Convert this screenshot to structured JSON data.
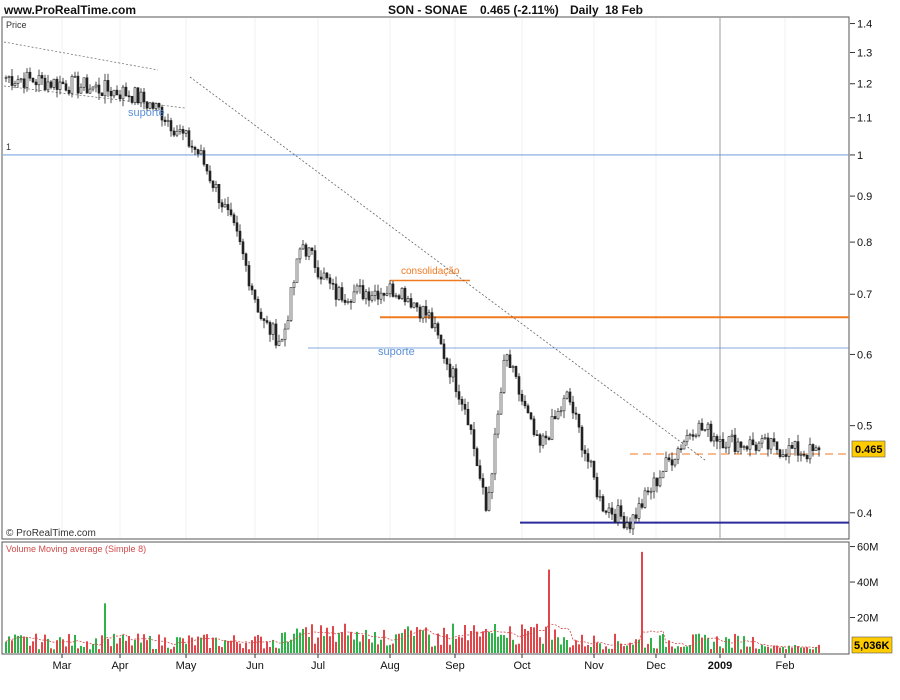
{
  "header": {
    "site": "www.ProRealTime.com",
    "ticker": "SON - SONAE",
    "quote": "0.465 (-2.11%)",
    "period": "Daily",
    "date": "18 Feb"
  },
  "colors": {
    "candle": "#222222",
    "support": "#5b8fd6",
    "consolidation": "#f07a20",
    "bottom_support": "#2b2a9c",
    "trend": "#666666",
    "vol_up": "#2fb24a",
    "vol_down": "#e0474b",
    "vol_ma": "#d24a4a"
  },
  "chart_data": [
    {
      "type": "candlestick",
      "panel_label": "Price",
      "y_scale": "log",
      "ylim": [
        0.375,
        1.42
      ],
      "yticks": [
        "0.4",
        "0.5",
        "0.6",
        "0.7",
        "0.8",
        "0.9",
        "1",
        "1.1",
        "1.2",
        "1.3",
        "1.4"
      ],
      "xticks": [
        "Mar",
        "Apr",
        "May",
        "Jun",
        "Jul",
        "Aug",
        "Sep",
        "Oct",
        "Nov",
        "Dec",
        "2009",
        "Feb"
      ],
      "last_price_label": "0.465",
      "level_1_label": "1",
      "annotations": {
        "suporte_upper": "suporte",
        "suporte_mid": "suporte",
        "consolidacao": "consolidação"
      },
      "levels": [
        {
          "name": "level_1",
          "value": 1.0
        },
        {
          "name": "resistance_orange",
          "value": 0.66
        },
        {
          "name": "support_mid",
          "value": 0.61
        },
        {
          "name": "consolidation_top",
          "value": 0.725
        },
        {
          "name": "bottom_support",
          "value": 0.39
        },
        {
          "name": "last_close_dashed",
          "value": 0.465
        }
      ],
      "close_path": [
        [
          "Mar",
          1.22
        ],
        [
          "Apr",
          1.2
        ],
        [
          "May",
          1.17
        ],
        [
          "May",
          1.12
        ],
        [
          "Jun",
          1.0
        ],
        [
          "Jun",
          0.9
        ],
        [
          "Jun",
          0.8
        ],
        [
          "Jul",
          0.65
        ],
        [
          "Jul",
          0.62
        ],
        [
          "Jul",
          0.8
        ],
        [
          "Aug",
          0.7
        ],
        [
          "Sep",
          0.71
        ],
        [
          "Sep",
          0.66
        ],
        [
          "Oct",
          0.52
        ],
        [
          "Oct",
          0.4
        ],
        [
          "Oct",
          0.6
        ],
        [
          "Nov",
          0.47
        ],
        [
          "Nov",
          0.54
        ],
        [
          "Dec",
          0.41
        ],
        [
          "Dec",
          0.39
        ],
        [
          "2009",
          0.45
        ],
        [
          "2009",
          0.5
        ],
        [
          "Feb",
          0.48
        ],
        [
          "Feb",
          0.465
        ]
      ],
      "copyright": "© ProRealTime.com"
    },
    {
      "type": "bar",
      "panel_label": "Volume Moving average (Simple 8)",
      "yticks": [
        "20M",
        "40M",
        "60M"
      ],
      "ylim": [
        0,
        62
      ],
      "unit": "M",
      "last_value_label": "5,036K",
      "notable_spikes": [
        {
          "x": "Apr",
          "value": 28
        },
        {
          "x": "Oct",
          "value": 47
        },
        {
          "x": "Dec",
          "value": 57
        }
      ]
    }
  ]
}
